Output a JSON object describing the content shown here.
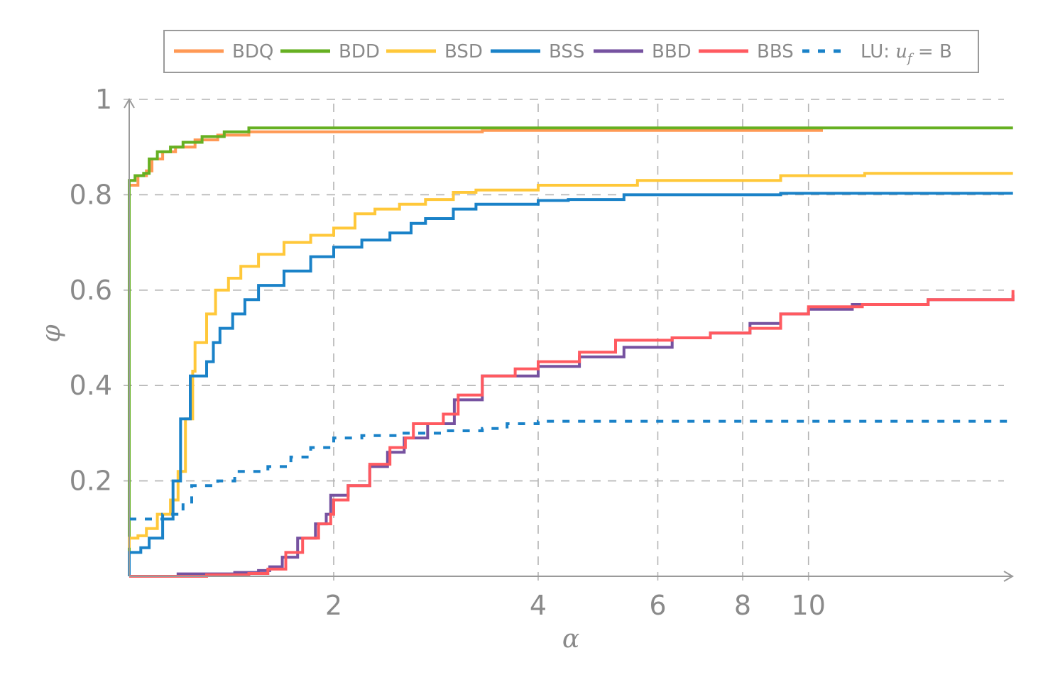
{
  "chart_data": {
    "type": "line",
    "title": "",
    "xlabel": "α",
    "ylabel": "φ",
    "xscale": "log2",
    "xlim": [
      1,
      20
    ],
    "ylim": [
      0,
      1
    ],
    "xticks": [
      2,
      4,
      6,
      8,
      10
    ],
    "xtick_labels": [
      "2",
      "4",
      "6",
      "8",
      "10"
    ],
    "yticks": [
      0.2,
      0.4,
      0.6,
      0.8,
      1
    ],
    "ytick_labels": [
      "0.2",
      "0.4",
      "0.6",
      "0.8",
      "1"
    ],
    "grid": true,
    "legend_position": "top",
    "series": [
      {
        "name": "BDQ",
        "color": "#ff9955",
        "dash": false,
        "points": [
          [
            1,
            0
          ],
          [
            1,
            0.82
          ],
          [
            1.03,
            0.84
          ],
          [
            1.06,
            0.85
          ],
          [
            1.08,
            0.875
          ],
          [
            1.12,
            0.89
          ],
          [
            1.17,
            0.9
          ],
          [
            1.25,
            0.915
          ],
          [
            1.35,
            0.925
          ],
          [
            1.5,
            0.932
          ],
          [
            3.3,
            0.932
          ],
          [
            3.31,
            0.935
          ],
          [
            10.5,
            0.935
          ]
        ]
      },
      {
        "name": "BDD",
        "color": "#66b022",
        "dash": false,
        "points": [
          [
            1,
            0
          ],
          [
            1,
            0.83
          ],
          [
            1.02,
            0.84
          ],
          [
            1.05,
            0.845
          ],
          [
            1.07,
            0.875
          ],
          [
            1.1,
            0.89
          ],
          [
            1.15,
            0.9
          ],
          [
            1.2,
            0.91
          ],
          [
            1.28,
            0.922
          ],
          [
            1.38,
            0.932
          ],
          [
            1.5,
            0.94
          ],
          [
            20,
            0.94
          ]
        ]
      },
      {
        "name": "BSD",
        "color": "#ffc83a",
        "dash": false,
        "points": [
          [
            1,
            0.06
          ],
          [
            1,
            0.08
          ],
          [
            1.03,
            0.085
          ],
          [
            1.06,
            0.1
          ],
          [
            1.1,
            0.13
          ],
          [
            1.15,
            0.16
          ],
          [
            1.18,
            0.22
          ],
          [
            1.21,
            0.33
          ],
          [
            1.24,
            0.43
          ],
          [
            1.25,
            0.49
          ],
          [
            1.3,
            0.55
          ],
          [
            1.34,
            0.6
          ],
          [
            1.4,
            0.625
          ],
          [
            1.46,
            0.65
          ],
          [
            1.55,
            0.675
          ],
          [
            1.69,
            0.7
          ],
          [
            1.85,
            0.715
          ],
          [
            2,
            0.73
          ],
          [
            2.15,
            0.76
          ],
          [
            2.3,
            0.77
          ],
          [
            2.5,
            0.78
          ],
          [
            2.73,
            0.79
          ],
          [
            3.0,
            0.805
          ],
          [
            3.24,
            0.81
          ],
          [
            4,
            0.82
          ],
          [
            5.6,
            0.83
          ],
          [
            9.1,
            0.84
          ],
          [
            12.1,
            0.845
          ],
          [
            20,
            0.845
          ]
        ]
      },
      {
        "name": "BSS",
        "color": "#1a82c8",
        "dash": false,
        "points": [
          [
            1,
            0
          ],
          [
            1,
            0.05
          ],
          [
            1.04,
            0.06
          ],
          [
            1.07,
            0.08
          ],
          [
            1.12,
            0.12
          ],
          [
            1.16,
            0.2
          ],
          [
            1.19,
            0.33
          ],
          [
            1.23,
            0.42
          ],
          [
            1.3,
            0.45
          ],
          [
            1.33,
            0.49
          ],
          [
            1.36,
            0.52
          ],
          [
            1.42,
            0.55
          ],
          [
            1.48,
            0.58
          ],
          [
            1.55,
            0.61
          ],
          [
            1.69,
            0.64
          ],
          [
            1.85,
            0.67
          ],
          [
            2,
            0.69
          ],
          [
            2.2,
            0.705
          ],
          [
            2.42,
            0.72
          ],
          [
            2.6,
            0.74
          ],
          [
            2.73,
            0.75
          ],
          [
            3.0,
            0.77
          ],
          [
            3.24,
            0.78
          ],
          [
            4,
            0.788
          ],
          [
            4.43,
            0.79
          ],
          [
            5.35,
            0.8
          ],
          [
            9.1,
            0.803
          ],
          [
            20,
            0.803
          ]
        ]
      },
      {
        "name": "BBD",
        "color": "#7652a0",
        "dash": false,
        "points": [
          [
            1,
            0
          ],
          [
            1.18,
            0.005
          ],
          [
            1.43,
            0.008
          ],
          [
            1.55,
            0.012
          ],
          [
            1.61,
            0.02
          ],
          [
            1.68,
            0.04
          ],
          [
            1.77,
            0.08
          ],
          [
            1.88,
            0.11
          ],
          [
            1.95,
            0.13
          ],
          [
            1.98,
            0.17
          ],
          [
            2.1,
            0.19
          ],
          [
            2.26,
            0.23
          ],
          [
            2.4,
            0.26
          ],
          [
            2.54,
            0.29
          ],
          [
            2.75,
            0.32
          ],
          [
            3.01,
            0.37
          ],
          [
            3.31,
            0.42
          ],
          [
            4,
            0.44
          ],
          [
            4.6,
            0.46
          ],
          [
            5.35,
            0.48
          ],
          [
            6.3,
            0.5
          ],
          [
            7.17,
            0.51
          ],
          [
            8.2,
            0.53
          ],
          [
            9.1,
            0.55
          ],
          [
            10,
            0.56
          ],
          [
            11.6,
            0.57
          ],
          [
            15,
            0.58
          ],
          [
            20,
            0.59
          ]
        ]
      },
      {
        "name": "BBS",
        "color": "#ff5a60",
        "dash": false,
        "points": [
          [
            1,
            0
          ],
          [
            1.3,
            0.003
          ],
          [
            1.5,
            0.006
          ],
          [
            1.6,
            0.015
          ],
          [
            1.7,
            0.05
          ],
          [
            1.8,
            0.08
          ],
          [
            1.9,
            0.11
          ],
          [
            1.98,
            0.13
          ],
          [
            2.0,
            0.16
          ],
          [
            2.1,
            0.19
          ],
          [
            2.26,
            0.235
          ],
          [
            2.42,
            0.27
          ],
          [
            2.55,
            0.29
          ],
          [
            2.62,
            0.32
          ],
          [
            2.9,
            0.34
          ],
          [
            3.05,
            0.38
          ],
          [
            3.31,
            0.42
          ],
          [
            3.7,
            0.435
          ],
          [
            4,
            0.45
          ],
          [
            4.6,
            0.47
          ],
          [
            5.2,
            0.495
          ],
          [
            6.3,
            0.5
          ],
          [
            7.17,
            0.51
          ],
          [
            8.2,
            0.52
          ],
          [
            9.1,
            0.55
          ],
          [
            10,
            0.565
          ],
          [
            12,
            0.57
          ],
          [
            15,
            0.58
          ],
          [
            20,
            0.6
          ]
        ]
      },
      {
        "name": "LU: u_f = B",
        "color": "#1a82c8",
        "dash": true,
        "points": [
          [
            1,
            0.12
          ],
          [
            1.12,
            0.13
          ],
          [
            1.2,
            0.15
          ],
          [
            1.236,
            0.19
          ],
          [
            1.35,
            0.2
          ],
          [
            1.43,
            0.22
          ],
          [
            1.6,
            0.23
          ],
          [
            1.73,
            0.25
          ],
          [
            1.85,
            0.27
          ],
          [
            2,
            0.29
          ],
          [
            2.2,
            0.295
          ],
          [
            2.48,
            0.3
          ],
          [
            2.9,
            0.305
          ],
          [
            3.31,
            0.31
          ],
          [
            3.6,
            0.32
          ],
          [
            4,
            0.325
          ],
          [
            20,
            0.325
          ]
        ]
      }
    ],
    "legend": {
      "labels": [
        "BDQ",
        "BDD",
        "BSD",
        "BSS",
        "BBD",
        "BBS",
        "LU: "
      ],
      "lu_math": "u",
      "lu_sub": "f",
      "lu_rest": " = B"
    }
  }
}
